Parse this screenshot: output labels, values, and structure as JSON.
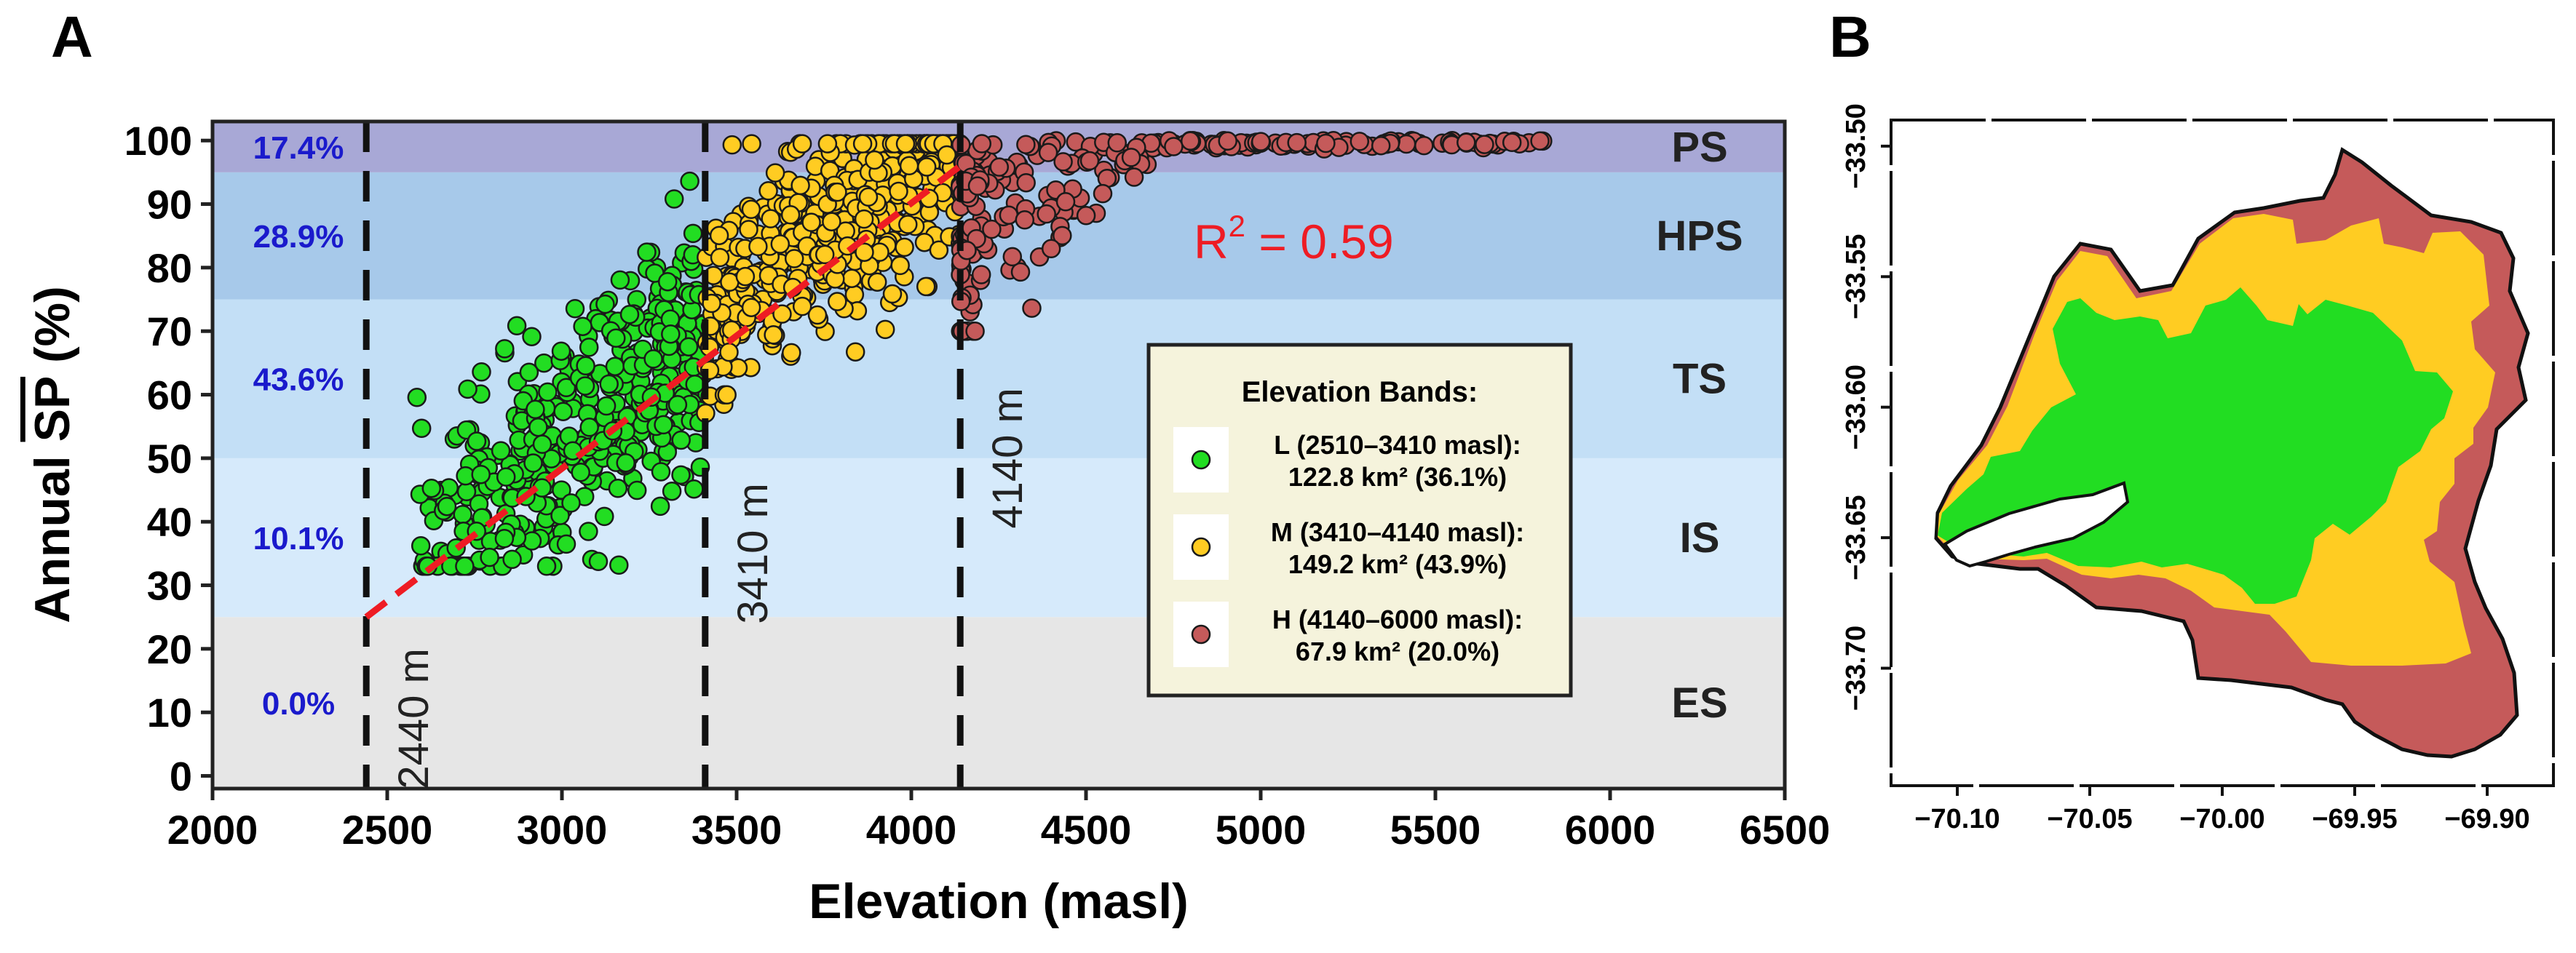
{
  "panel_a_label": "A",
  "panel_b_label": "B",
  "chart_data": [
    {
      "type": "scatter",
      "xlabel": "Elevation (masl)",
      "ylabel_prefix": "Annual ",
      "ylabel_sp": "SP",
      "ylabel_suffix": " (%)",
      "xlim": [
        2000,
        6500
      ],
      "ylim": [
        -2,
        103
      ],
      "xticks": [
        2000,
        2500,
        3000,
        3500,
        4000,
        4500,
        5000,
        5500,
        6000,
        6500
      ],
      "yticks": [
        0,
        10,
        20,
        30,
        40,
        50,
        60,
        70,
        80,
        90,
        100
      ],
      "bands": [
        {
          "code": "ES",
          "from": -2,
          "to": 25,
          "color": "#e6e6e6",
          "share": "0.0%"
        },
        {
          "code": "IS",
          "from": 25,
          "to": 50,
          "color": "#d6eafb",
          "share": "10.1%"
        },
        {
          "code": "TS",
          "from": 50,
          "to": 75,
          "color": "#c3dff6",
          "share": "43.6%"
        },
        {
          "code": "HPS",
          "from": 75,
          "to": 95,
          "color": "#a7c9ea",
          "share": "28.9%"
        },
        {
          "code": "PS",
          "from": 95,
          "to": 103,
          "color": "#a8a8d6",
          "share": "17.4%"
        }
      ],
      "vlines": [
        {
          "x": 2440,
          "label": "2440 m",
          "label_y": 9
        },
        {
          "x": 3410,
          "label": "3410 m",
          "label_y": 35
        },
        {
          "x": 4140,
          "label": "4140 m",
          "label_y": 50
        }
      ],
      "trend": {
        "x": [
          2440,
          4140
        ],
        "y": [
          25,
          96
        ],
        "color": "#ee1c24"
      },
      "r2_prefix": "R",
      "r2_exp": "2",
      "r2_value": " = 0.59",
      "legend_title": "Elevation Bands:",
      "series": [
        {
          "name": "L",
          "line1": "L (2510–3410 masl):",
          "line2": "122.8 km² (36.1%)",
          "color": "#22dd22",
          "x_range": [
            2580,
            3410
          ]
        },
        {
          "name": "M",
          "line1": "M (3410–4140 masl):",
          "line2": "149.2 km² (43.9%)",
          "color": "#ffcc22",
          "x_range": [
            3410,
            4140
          ]
        },
        {
          "name": "H",
          "line1": "H (4140–6000 masl):",
          "line2": "67.9 km² (20.0%)",
          "color": "#c55a5a",
          "x_range": [
            4140,
            5820
          ]
        }
      ]
    },
    {
      "type": "map",
      "xlim": [
        -70.125,
        -69.875
      ],
      "ylim": [
        -33.745,
        -33.49
      ],
      "xticks": [
        -70.1,
        -70.05,
        -70.0,
        -69.95,
        -69.9
      ],
      "xtick_labels": [
        "−70.10",
        "−70.05",
        "−70.00",
        "−69.95",
        "−69.90"
      ],
      "yticks": [
        -33.5,
        -33.55,
        -33.6,
        -33.65,
        -33.7
      ],
      "ytick_labels": [
        "−33.50",
        "−33.55",
        "−33.60",
        "−33.65",
        "−33.70"
      ],
      "colors": {
        "L": "#22dd22",
        "M": "#ffcc22",
        "H": "#c55a5a"
      }
    }
  ]
}
